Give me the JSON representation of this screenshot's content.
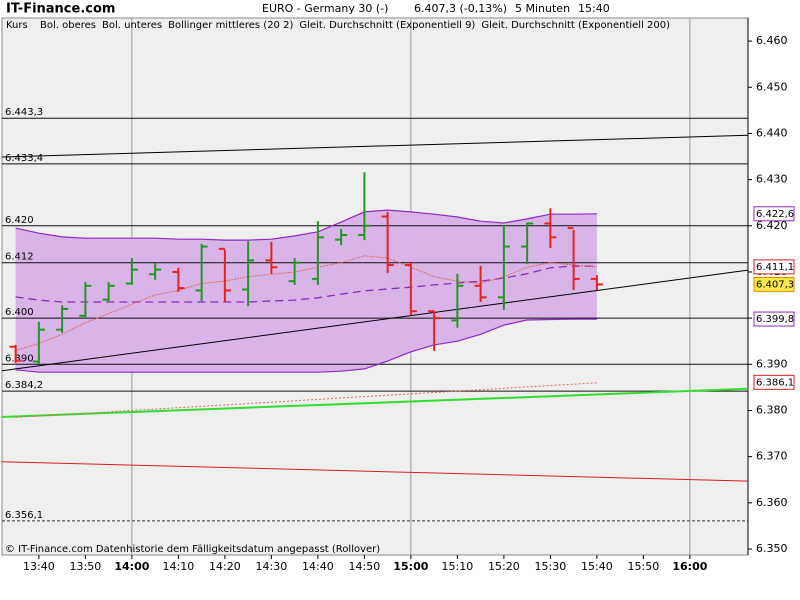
{
  "chart_data": {
    "type": "ohlc",
    "brand": "IT-Finance.com",
    "title": "EURO - Germany 30 (-)",
    "quote": "6.407,3 (-0,13%)",
    "interval": "5 Minuten",
    "time": "15:40",
    "footer": "© IT-Finance.com  Datenhistorie dem Fälligkeitsdatum angepasst (Rollover)",
    "categories": [
      null,
      "13:40",
      null,
      "13:50",
      null,
      "14:00",
      null,
      "14:10",
      null,
      "14:20",
      null,
      "14:30",
      null,
      "14:40",
      null,
      "14:50",
      null,
      "15:00",
      null,
      "15:10",
      null,
      "15:20",
      null,
      "15:30",
      null,
      "15:40",
      null,
      "15:50",
      null,
      "16:00",
      null,
      null
    ],
    "ylim": [
      6.3487,
      6.465
    ],
    "yticks": [
      {
        "value": 6.46,
        "label": "6.460"
      },
      {
        "value": 6.45,
        "label": "6.450"
      },
      {
        "value": 6.44,
        "label": "6.440"
      },
      {
        "value": 6.43,
        "label": "6.430"
      },
      {
        "value": 6.42,
        "label": "6.420"
      },
      {
        "value": 6.41,
        "label": "6.410"
      },
      {
        "value": 6.4,
        "label": "6.400"
      },
      {
        "value": 6.39,
        "label": "6.390"
      },
      {
        "value": 6.38,
        "label": "6.380"
      },
      {
        "value": 6.37,
        "label": "6.370"
      },
      {
        "value": 6.36,
        "label": "6.360"
      },
      {
        "value": 6.35,
        "label": "6.350"
      }
    ],
    "kurs": {
      "name": "Kurs",
      "up_color": "#1f9a1f",
      "down_color": "#e8221c",
      "open": [
        6.3938,
        6.3906,
        6.3975,
        6.4005,
        6.404,
        6.4075,
        6.4095,
        6.41,
        6.406,
        6.415,
        6.4062,
        6.4125,
        6.408,
        6.4085,
        6.417,
        6.418,
        6.422,
        6.4115,
        6.4015,
        6.3995,
        6.407,
        6.4045,
        6.4155,
        6.4205,
        6.4195,
        6.4085,
        null,
        null,
        null,
        null,
        null,
        null
      ],
      "high": [
        6.3942,
        6.3992,
        6.4028,
        6.4078,
        6.4078,
        6.413,
        6.4119,
        6.4109,
        6.4161,
        6.4148,
        6.4167,
        6.4165,
        6.413,
        6.421,
        6.4193,
        6.4316,
        6.423,
        6.4122,
        6.4016,
        6.4096,
        6.4113,
        6.4202,
        6.4206,
        6.4238,
        6.4191,
        6.4093,
        null,
        null,
        null,
        null,
        null,
        null
      ],
      "low": [
        6.3903,
        6.3901,
        6.3968,
        6.4,
        6.4035,
        6.4072,
        6.4083,
        6.4057,
        6.4037,
        6.4035,
        6.4026,
        6.4096,
        6.4072,
        6.4072,
        6.4158,
        6.4169,
        6.4098,
        6.4007,
        6.3929,
        6.3979,
        6.4035,
        6.4018,
        6.4117,
        6.4152,
        6.4061,
        6.4061,
        null,
        null,
        null,
        null,
        null,
        null
      ],
      "close": [
        6.3908,
        6.3975,
        6.402,
        6.407,
        6.407,
        6.4105,
        6.4105,
        6.4065,
        6.4155,
        6.406,
        6.4125,
        6.411,
        6.412,
        6.4175,
        6.418,
        6.42,
        6.4115,
        6.4015,
        6.4,
        6.407,
        6.4045,
        6.4155,
        6.4205,
        6.4175,
        6.4085,
        6.4073,
        null,
        null,
        null,
        null,
        null,
        null
      ]
    },
    "bollinger": {
      "color": "#8e2bc0",
      "fill": "#d8b4e8",
      "upper_name": "Bol. oberes",
      "lower_name": "Bol. unteres",
      "middle_name": "Bollinger mittleres (20 2)",
      "upper": [
        6.4195,
        6.4184,
        6.4176,
        6.4173,
        6.4173,
        6.4173,
        6.4173,
        6.4171,
        6.4171,
        6.4169,
        6.4169,
        6.4171,
        6.4178,
        6.4187,
        6.4208,
        6.423,
        6.4234,
        6.423,
        6.4225,
        6.4219,
        6.421,
        6.4206,
        6.4215,
        6.4225,
        6.4225,
        6.4226,
        null,
        null,
        null,
        null,
        null,
        null
      ],
      "lower": [
        6.3888,
        6.3883,
        6.3883,
        6.3883,
        6.3883,
        6.3883,
        6.3883,
        6.3883,
        6.3883,
        6.3883,
        6.3883,
        6.3883,
        6.3883,
        6.3883,
        6.3885,
        6.389,
        6.3907,
        6.3927,
        6.3942,
        6.395,
        6.3965,
        6.3985,
        6.3996,
        6.3997,
        6.3998,
        6.3998,
        null,
        null,
        null,
        null,
        null,
        null
      ],
      "middle": [
        6.4046,
        6.4039,
        6.4035,
        6.4035,
        6.4035,
        6.4035,
        6.4035,
        6.4035,
        6.4035,
        6.4035,
        6.4035,
        6.4037,
        6.4039,
        6.4044,
        6.4052,
        6.4059,
        6.4063,
        6.4067,
        6.4072,
        6.4076,
        6.408,
        6.4087,
        6.4096,
        6.4109,
        6.4113,
        6.4112,
        null,
        null,
        null,
        null,
        null,
        null
      ]
    },
    "ema": [
      {
        "name": "Gleit. Durchschnitt (Exponentiell 9)",
        "color": "#e06a5a",
        "values": [
          6.393,
          6.3945,
          6.3965,
          6.399,
          6.401,
          6.403,
          6.405,
          6.406,
          6.4075,
          6.408,
          6.409,
          6.4095,
          6.41,
          6.411,
          6.412,
          6.4135,
          6.413,
          6.411,
          6.409,
          6.408,
          6.4075,
          6.409,
          6.411,
          6.412,
          6.4115,
          6.4111,
          null,
          null,
          null,
          null,
          null,
          null
        ]
      },
      {
        "name": "Gleit. Durchschnitt (Exponentiell 200)",
        "color": "#e06a5a",
        "values": [
          6.3785,
          6.3788,
          6.3791,
          6.3794,
          6.3797,
          6.38,
          6.3803,
          6.3806,
          6.3809,
          6.3812,
          6.3815,
          6.3818,
          6.3821,
          6.3824,
          6.3827,
          6.383,
          6.3833,
          6.3836,
          6.3839,
          6.3842,
          6.3845,
          6.3848,
          6.3851,
          6.3854,
          6.3857,
          6.386,
          null,
          null,
          null,
          null,
          null,
          null
        ]
      }
    ],
    "hlines": [
      {
        "value": 6.4433,
        "label": "6.443,3",
        "dashed": false
      },
      {
        "value": 6.4334,
        "label": "6.433,4",
        "dashed": false
      },
      {
        "value": 6.42,
        "label": "6.420",
        "dashed": false
      },
      {
        "value": 6.412,
        "label": "6.412",
        "dashed": false
      },
      {
        "value": 6.4,
        "label": "6.400",
        "dashed": false
      },
      {
        "value": 6.39,
        "label": "6.390",
        "dashed": false
      },
      {
        "value": 6.3842,
        "label": "6.384,2",
        "dashed": false
      },
      {
        "value": 6.3561,
        "label": "6.356,1",
        "dashed": true
      }
    ],
    "trendlines": [
      {
        "color": "#000000",
        "width": 1,
        "values": [
          6.4349,
          6.4396
        ]
      },
      {
        "color": "#000000",
        "width": 1,
        "values": [
          6.3886,
          6.4104
        ]
      },
      {
        "color": "#33dd33",
        "width": 2,
        "values": [
          6.3786,
          6.3847
        ]
      },
      {
        "color": "#d42020",
        "width": 1,
        "values": [
          6.3689,
          6.3647
        ]
      }
    ],
    "price_labels": [
      {
        "value": 6.4226,
        "label": "6.422,6",
        "color": "#8e2bc0",
        "bg": "#ffffff"
      },
      {
        "value": 6.4111,
        "label": "6.411,1",
        "color": "#d42020",
        "bg": "#ffffff"
      },
      {
        "value": 6.4073,
        "label": "6.407,3",
        "color": "#000000",
        "bg": "#ffe94a"
      },
      {
        "value": 6.3998,
        "label": "6.399,8",
        "color": "#8e2bc0",
        "bg": "#ffffff"
      },
      {
        "value": 6.3861,
        "label": "6.386,1",
        "color": "#d42020",
        "bg": "#ffffff"
      }
    ]
  }
}
